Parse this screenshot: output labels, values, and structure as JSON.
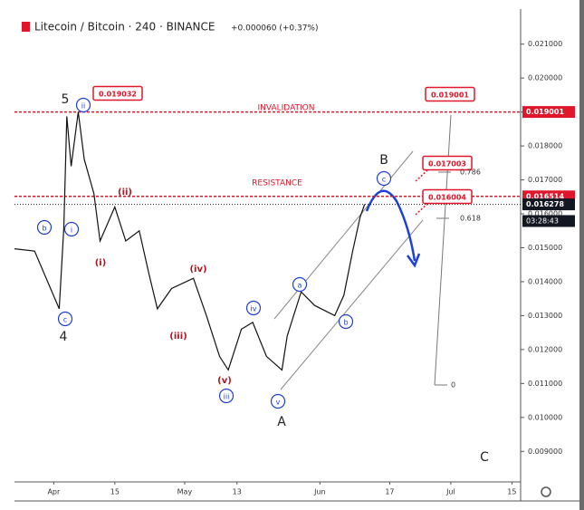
{
  "chart_data": {
    "type": "line",
    "title": "Litecoin / Bitcoin · 240 · BINANCE",
    "subtitle": "+0.000060 (+0.37%)",
    "color": "#111111",
    "x": [
      -9,
      -4.4,
      1.25,
      2.3,
      3,
      4,
      5.6,
      7,
      9.2,
      10.6,
      14,
      16.5,
      19.6,
      21.7,
      23.75,
      27,
      32,
      35,
      38,
      40,
      43,
      45.6,
      48.75,
      52.3,
      53.5,
      56.7,
      59.8,
      64.4,
      66.5,
      68.5,
      70.2,
      71.25
    ],
    "values": [
      0.01497,
      0.0149,
      0.0132,
      0.0156,
      0.01887,
      0.0174,
      0.019,
      0.0176,
      0.0166,
      0.0152,
      0.0162,
      0.0152,
      0.0155,
      0.0143,
      0.0132,
      0.0138,
      0.0141,
      0.013,
      0.0118,
      0.0114,
      0.0126,
      0.0128,
      0.0118,
      0.0114,
      0.0124,
      0.0137,
      0.0133,
      0.013,
      0.0136,
      0.0149,
      0.0159,
      0.016278
    ],
    "xlim": [
      -9,
      107
    ],
    "ylim": [
      0.0081,
      0.0219
    ],
    "xticks": [
      {
        "value": 0,
        "label": "Apr"
      },
      {
        "value": 14,
        "label": "15"
      },
      {
        "value": 30,
        "label": "May"
      },
      {
        "value": 42,
        "label": "13"
      },
      {
        "value": 61,
        "label": "Jun"
      },
      {
        "value": 77,
        "label": "17"
      },
      {
        "value": 91,
        "label": "Jul"
      },
      {
        "value": 105,
        "label": "15"
      }
    ],
    "yticks": [
      {
        "value": 0.009,
        "label": "0.009000"
      },
      {
        "value": 0.01,
        "label": "0.010000"
      },
      {
        "value": 0.011,
        "label": "0.011000"
      },
      {
        "value": 0.012,
        "label": "0.012000"
      },
      {
        "value": 0.013,
        "label": "0.013000"
      },
      {
        "value": 0.014,
        "label": "0.014000"
      },
      {
        "value": 0.015,
        "label": "0.015000"
      },
      {
        "value": 0.016,
        "label": "0.016000"
      },
      {
        "value": 0.017,
        "label": "0.017000"
      },
      {
        "value": 0.018,
        "label": "0.018000"
      },
      {
        "value": 0.019,
        "label": "0.019000"
      },
      {
        "value": 0.02,
        "label": "0.020000"
      },
      {
        "value": 0.021,
        "label": "0.021000"
      }
    ],
    "hlines": [
      {
        "value": 0.019001,
        "label": "0.019001",
        "color": "#e0162b",
        "style": "dashed"
      },
      {
        "value": 0.016514,
        "label": "0.016514",
        "color": "#e0162b",
        "style": "dashed"
      },
      {
        "value": 0.016278,
        "label": "0.016278",
        "color": "#131722",
        "style": "dotted"
      }
    ],
    "annotations": [
      "5",
      "ii",
      "0.019032",
      "INVALIDATION",
      "0.019001",
      "B",
      "c",
      "0.017003",
      "0.786",
      "RESISTANCE",
      "(ii)",
      "0.016004",
      "0.618",
      "b",
      "i",
      "(i)",
      "(iv)",
      "a",
      "iv",
      "c",
      "b",
      "4",
      "(iii)",
      "(v)",
      "iii",
      "0",
      "v",
      "A",
      "C",
      "03:28:43"
    ]
  }
}
